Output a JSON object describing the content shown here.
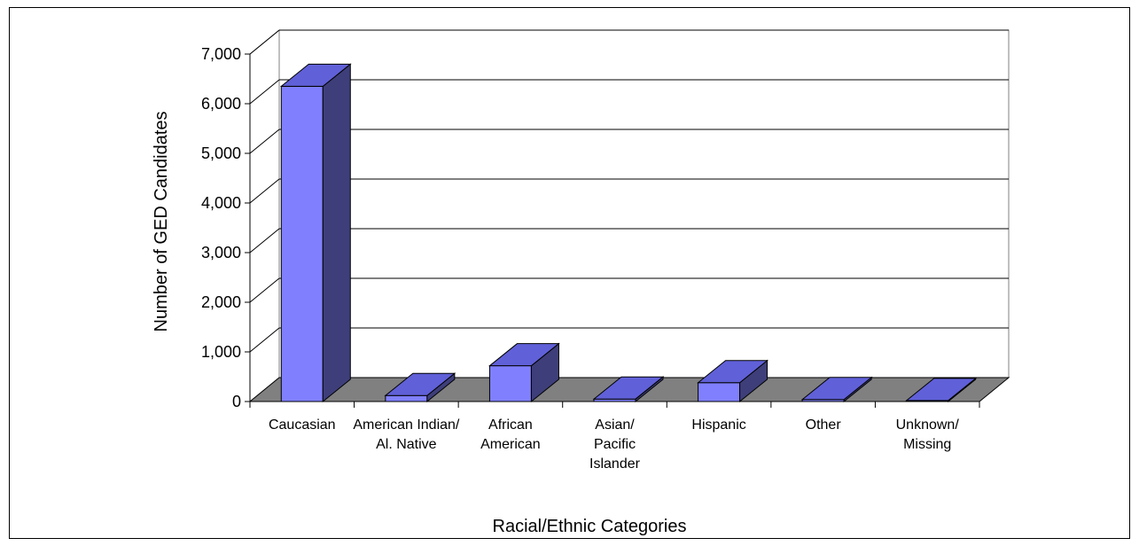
{
  "chart_data": {
    "type": "bar",
    "categories": [
      [
        "Caucasian"
      ],
      [
        "American Indian/",
        "Al. Native"
      ],
      [
        "African",
        "American"
      ],
      [
        "Asian/",
        "Pacific",
        "Islander"
      ],
      [
        "Hispanic"
      ],
      [
        "Other"
      ],
      [
        "Unknown/",
        "Missing"
      ]
    ],
    "values": [
      6350,
      120,
      720,
      50,
      380,
      40,
      20
    ],
    "title": "",
    "xlabel": "Racial/Ethnic Categories",
    "ylabel": "Number of GED Candidates",
    "ylim": [
      0,
      7000
    ],
    "yticks": [
      0,
      1000,
      2000,
      3000,
      4000,
      5000,
      6000,
      7000
    ],
    "ytick_labels": [
      "0",
      "1,000",
      "2,000",
      "3,000",
      "4,000",
      "5,000",
      "6,000",
      "7,000"
    ],
    "grid": true,
    "three_d": true,
    "colors": {
      "bar_front": "#8080ff",
      "bar_side": "#3e3e7a",
      "bar_top": "#6060d8",
      "floor": "#808080",
      "grid": "#000000"
    }
  }
}
